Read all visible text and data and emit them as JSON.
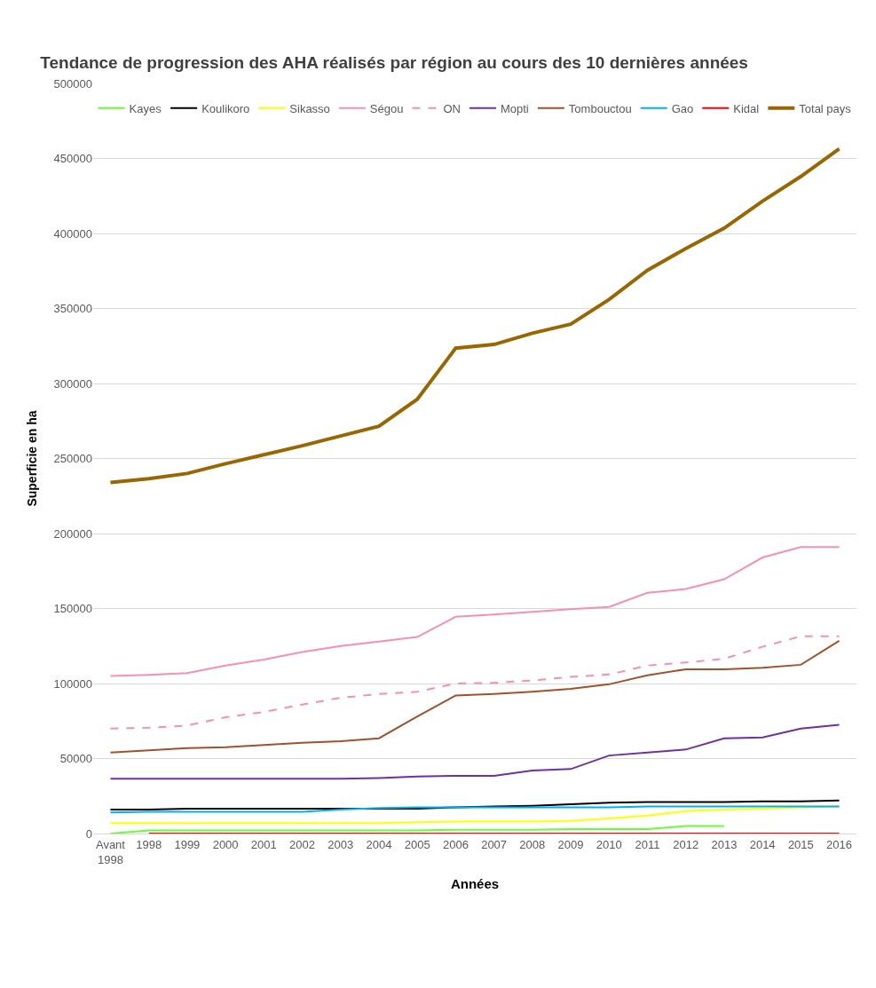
{
  "chart_data": {
    "type": "line",
    "title": "Tendance de progression des AHA réalisés par région au cours des 10 dernières années",
    "xlabel": "Années",
    "ylabel": "Superficie en ha",
    "categories": [
      "Avant 1998",
      "1998",
      "1999",
      "2000",
      "2001",
      "2002",
      "2003",
      "2004",
      "2005",
      "2006",
      "2007",
      "2008",
      "2009",
      "2010",
      "2011",
      "2012",
      "2013",
      "2014",
      "2015",
      "2016"
    ],
    "ylim": [
      0,
      500000
    ],
    "yticks": [
      0,
      50000,
      100000,
      150000,
      200000,
      250000,
      300000,
      350000,
      400000,
      450000,
      500000
    ],
    "grid": "y",
    "legend": "top",
    "line_style": "solid",
    "series": [
      {
        "name": "Kayes",
        "color": "#66ff33",
        "values": [
          0,
          2000,
          2000,
          2000,
          2000,
          2000,
          2000,
          2000,
          2000,
          2500,
          2500,
          2500,
          3000,
          3000,
          3000,
          5000,
          5000,
          null,
          null,
          null
        ]
      },
      {
        "name": "Koulikoro",
        "color": "#000000",
        "values": [
          16000,
          16000,
          16500,
          16500,
          16500,
          16500,
          16500,
          16500,
          16500,
          17500,
          18000,
          18500,
          19500,
          20500,
          21000,
          21000,
          21000,
          21500,
          21500,
          22000
        ]
      },
      {
        "name": "Sikasso",
        "color": "#ffff00",
        "values": [
          7000,
          7000,
          7000,
          7000,
          7000,
          7000,
          7000,
          7000,
          7500,
          8000,
          8000,
          8000,
          8500,
          10000,
          12000,
          15000,
          16000,
          16500,
          17500,
          18000
        ]
      },
      {
        "name": "Ségou",
        "color": "#f78fb3",
        "values": [
          105000,
          105800,
          107000,
          112000,
          116000,
          121000,
          125000,
          128000,
          131000,
          144500,
          146000,
          147800,
          149500,
          151000,
          160500,
          163000,
          169500,
          184000,
          191000,
          191000
        ]
      },
      {
        "name": "ON",
        "color": "#f78fb3",
        "line_style": "dashed",
        "values": [
          70000,
          70500,
          72000,
          77500,
          81000,
          86000,
          90500,
          93000,
          94500,
          100000,
          100500,
          102000,
          104500,
          106000,
          112000,
          114000,
          116500,
          124500,
          131500,
          131500
        ]
      },
      {
        "name": "Mopti",
        "color": "#7030a0",
        "values": [
          36500,
          36500,
          36500,
          36500,
          36500,
          36500,
          36500,
          37000,
          38000,
          38500,
          38500,
          42000,
          43000,
          52000,
          54000,
          56000,
          63500,
          64000,
          70000,
          72500
        ]
      },
      {
        "name": "Tombouctou",
        "color": "#a0522d",
        "values": [
          54000,
          55500,
          57000,
          57500,
          59000,
          60500,
          61500,
          63500,
          78000,
          92000,
          93000,
          94500,
          96500,
          99500,
          105500,
          109500,
          109500,
          110500,
          112500,
          128500
        ]
      },
      {
        "name": "Gao",
        "color": "#00b0f0",
        "values": [
          14000,
          14500,
          14500,
          14500,
          14500,
          14500,
          16000,
          17000,
          17500,
          17500,
          17500,
          17500,
          17500,
          17500,
          18000,
          18000,
          18000,
          18000,
          18000,
          18000
        ]
      },
      {
        "name": "Kidal",
        "color": "#ff0000",
        "values": [
          null,
          0,
          0,
          0,
          0,
          0,
          0,
          0,
          0,
          0,
          0,
          0,
          0,
          0,
          0,
          0,
          0,
          0,
          0,
          0
        ]
      },
      {
        "name": "Total pays",
        "color": "#996600",
        "values": [
          234000,
          236500,
          240000,
          246500,
          252500,
          258500,
          265000,
          271500,
          289500,
          323500,
          326000,
          333500,
          339500,
          356000,
          375500,
          390000,
          403500,
          421500,
          438000,
          456500
        ]
      }
    ]
  }
}
